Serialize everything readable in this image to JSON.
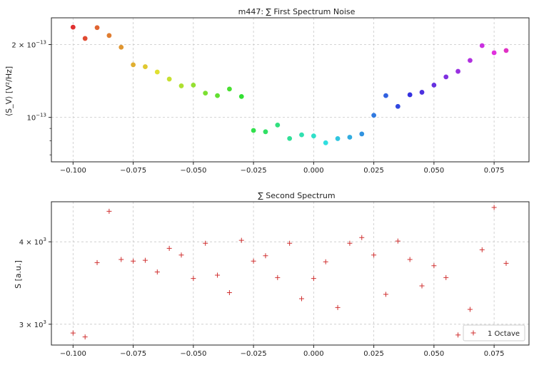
{
  "chart_data": [
    {
      "type": "scatter",
      "title": "m447: ∑ First Spectrum Noise",
      "xlabel": "",
      "ylabel": "⟨S_V⟩ [V²/Hz]",
      "yscale": "log",
      "xlim": [
        -0.109,
        0.0895
      ],
      "ylim": [
        6.55e-14,
        2.58e-13
      ],
      "grid": true,
      "xticks": [
        {
          "v": -0.1,
          "label": "−0.100"
        },
        {
          "v": -0.075,
          "label": "−0.075"
        },
        {
          "v": -0.05,
          "label": "−0.050"
        },
        {
          "v": -0.025,
          "label": "−0.025"
        },
        {
          "v": 0.0,
          "label": "0.000"
        },
        {
          "v": 0.025,
          "label": "0.025"
        },
        {
          "v": 0.05,
          "label": "0.050"
        },
        {
          "v": 0.075,
          "label": "0.075"
        }
      ],
      "yticks": [
        {
          "v": 1e-13,
          "mant": "10",
          "exp": "−13"
        },
        {
          "v": 2e-13,
          "mant": "2 × 10",
          "exp": "−13"
        }
      ],
      "yminor": [
        9e-14,
        8e-14,
        7e-14,
        3e-13
      ],
      "colormap": "hsv",
      "x": [
        -0.1,
        -0.095,
        -0.09,
        -0.085,
        -0.08,
        -0.075,
        -0.07,
        -0.065,
        -0.06,
        -0.055,
        -0.05,
        -0.045,
        -0.04,
        -0.035,
        -0.03,
        -0.025,
        -0.02,
        -0.015,
        -0.01,
        -0.005,
        0.0,
        0.005,
        0.01,
        0.015,
        0.02,
        0.025,
        0.03,
        0.035,
        0.04,
        0.045,
        0.05,
        0.055,
        0.06,
        0.065,
        0.07,
        0.075,
        0.08
      ],
      "y": [
        2.36e-13,
        2.12e-13,
        2.35e-13,
        2.18e-13,
        1.95e-13,
        1.65e-13,
        1.62e-13,
        1.54e-13,
        1.44e-13,
        1.35e-13,
        1.36e-13,
        1.26e-13,
        1.23e-13,
        1.31e-13,
        1.22e-13,
        8.83e-14,
        8.72e-14,
        9.3e-14,
        8.18e-14,
        8.47e-14,
        8.38e-14,
        7.85e-14,
        8.17e-14,
        8.28e-14,
        8.54e-14,
        1.02e-13,
        1.23e-13,
        1.11e-13,
        1.24e-13,
        1.27e-13,
        1.36e-13,
        1.47e-13,
        1.55e-13,
        1.72e-13,
        1.98e-13,
        1.85e-13,
        1.89e-13
      ]
    },
    {
      "type": "scatter",
      "title": "∑ Second Spectrum",
      "xlabel": "",
      "ylabel": "S [a.u.]",
      "yscale": "log",
      "xlim": [
        -0.109,
        0.0895
      ],
      "ylim": [
        2790.0,
        4600.0
      ],
      "grid": true,
      "marker": "+",
      "color": "#d03030",
      "legend": {
        "label": "1 Octave",
        "loc": "lower right"
      },
      "xticks": [
        {
          "v": -0.1,
          "label": "−0.100"
        },
        {
          "v": -0.075,
          "label": "−0.075"
        },
        {
          "v": -0.05,
          "label": "−0.050"
        },
        {
          "v": -0.025,
          "label": "−0.025"
        },
        {
          "v": 0.0,
          "label": "0.000"
        },
        {
          "v": 0.025,
          "label": "0.025"
        },
        {
          "v": 0.05,
          "label": "0.050"
        },
        {
          "v": 0.075,
          "label": "0.075"
        }
      ],
      "yticks": [
        {
          "v": 3000,
          "mant": "3 × 10",
          "exp": "3"
        },
        {
          "v": 4000,
          "mant": "4 × 10",
          "exp": "3"
        }
      ],
      "x": [
        -0.1,
        -0.095,
        -0.09,
        -0.085,
        -0.08,
        -0.075,
        -0.07,
        -0.065,
        -0.06,
        -0.055,
        -0.05,
        -0.045,
        -0.04,
        -0.035,
        -0.03,
        -0.025,
        -0.02,
        -0.015,
        -0.01,
        -0.005,
        0.0,
        0.005,
        0.01,
        0.015,
        0.02,
        0.025,
        0.03,
        0.035,
        0.04,
        0.045,
        0.05,
        0.055,
        0.06,
        0.065,
        0.07,
        0.075,
        0.08
      ],
      "y": [
        2910.0,
        2870.0,
        3720.0,
        4450.0,
        3760.0,
        3740.0,
        3750.0,
        3600.0,
        3910.0,
        3820.0,
        3520.0,
        3980.0,
        3560.0,
        3350.0,
        4020.0,
        3740.0,
        3810.0,
        3530.0,
        3980.0,
        3280.0,
        3520.0,
        3730.0,
        3180.0,
        3980.0,
        4060.0,
        3820.0,
        3330.0,
        4010.0,
        3760.0,
        3430.0,
        3680.0,
        3530.0,
        2890.0,
        3160.0,
        3890.0,
        4510.0,
        3710.0
      ]
    }
  ]
}
